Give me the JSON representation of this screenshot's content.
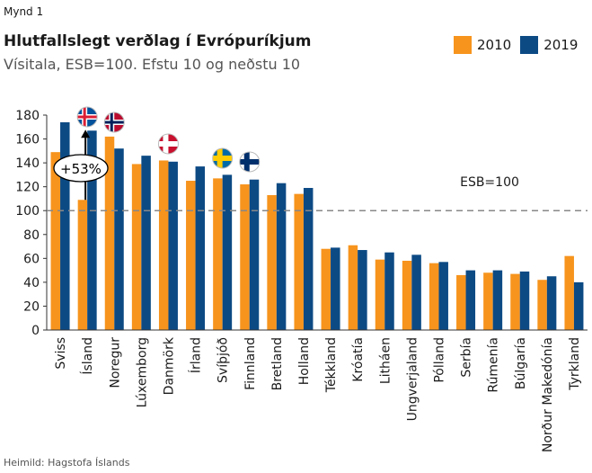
{
  "figure_label": "Mynd 1",
  "source": "Heimild: Hagstofa Íslands",
  "colors": {
    "series_2010": "#F7941D",
    "series_2019": "#0C4A84",
    "reference": "#888888"
  },
  "chart_data": {
    "type": "bar",
    "title": "Hlutfallslegt verðlag í Evrópuríkjum",
    "subtitle": "Vísitala, ESB=100. Efstu 10 og neðstu 10",
    "categories": [
      "Sviss",
      "Ísland",
      "Noregur",
      "Lúxemborg",
      "Danmörk",
      "Írland",
      "Svíþjóð",
      "Finnland",
      "Bretland",
      "Holland",
      "Tékkland",
      "Króatía",
      "Litháen",
      "Ungverjaland",
      "Pólland",
      "Serbía",
      "Rúmenía",
      "Búlgaría",
      "Norður Makedónía",
      "Tyrkland"
    ],
    "series": [
      {
        "name": "2010",
        "values": [
          149,
          109,
          162,
          139,
          142,
          125,
          127,
          122,
          113,
          114,
          68,
          71,
          59,
          58,
          56,
          46,
          48,
          47,
          42,
          62
        ]
      },
      {
        "name": "2019",
        "values": [
          174,
          167,
          152,
          146,
          141,
          137,
          130,
          126,
          123,
          119,
          69,
          67,
          65,
          63,
          57,
          50,
          50,
          49,
          45,
          40
        ]
      }
    ],
    "ylim": [
      0,
      180
    ],
    "yticks": [
      0,
      20,
      40,
      60,
      80,
      100,
      120,
      140,
      160,
      180
    ],
    "reference_line": {
      "value": 100,
      "label": "ESB=100",
      "style": "dashed"
    },
    "annotation": {
      "text": "+53%",
      "category": "Ísland"
    },
    "flags": [
      "iceland-flag",
      "norway-flag",
      "denmark-flag",
      "sweden-flag",
      "finland-flag"
    ],
    "legend": "top-right",
    "grid": false
  }
}
